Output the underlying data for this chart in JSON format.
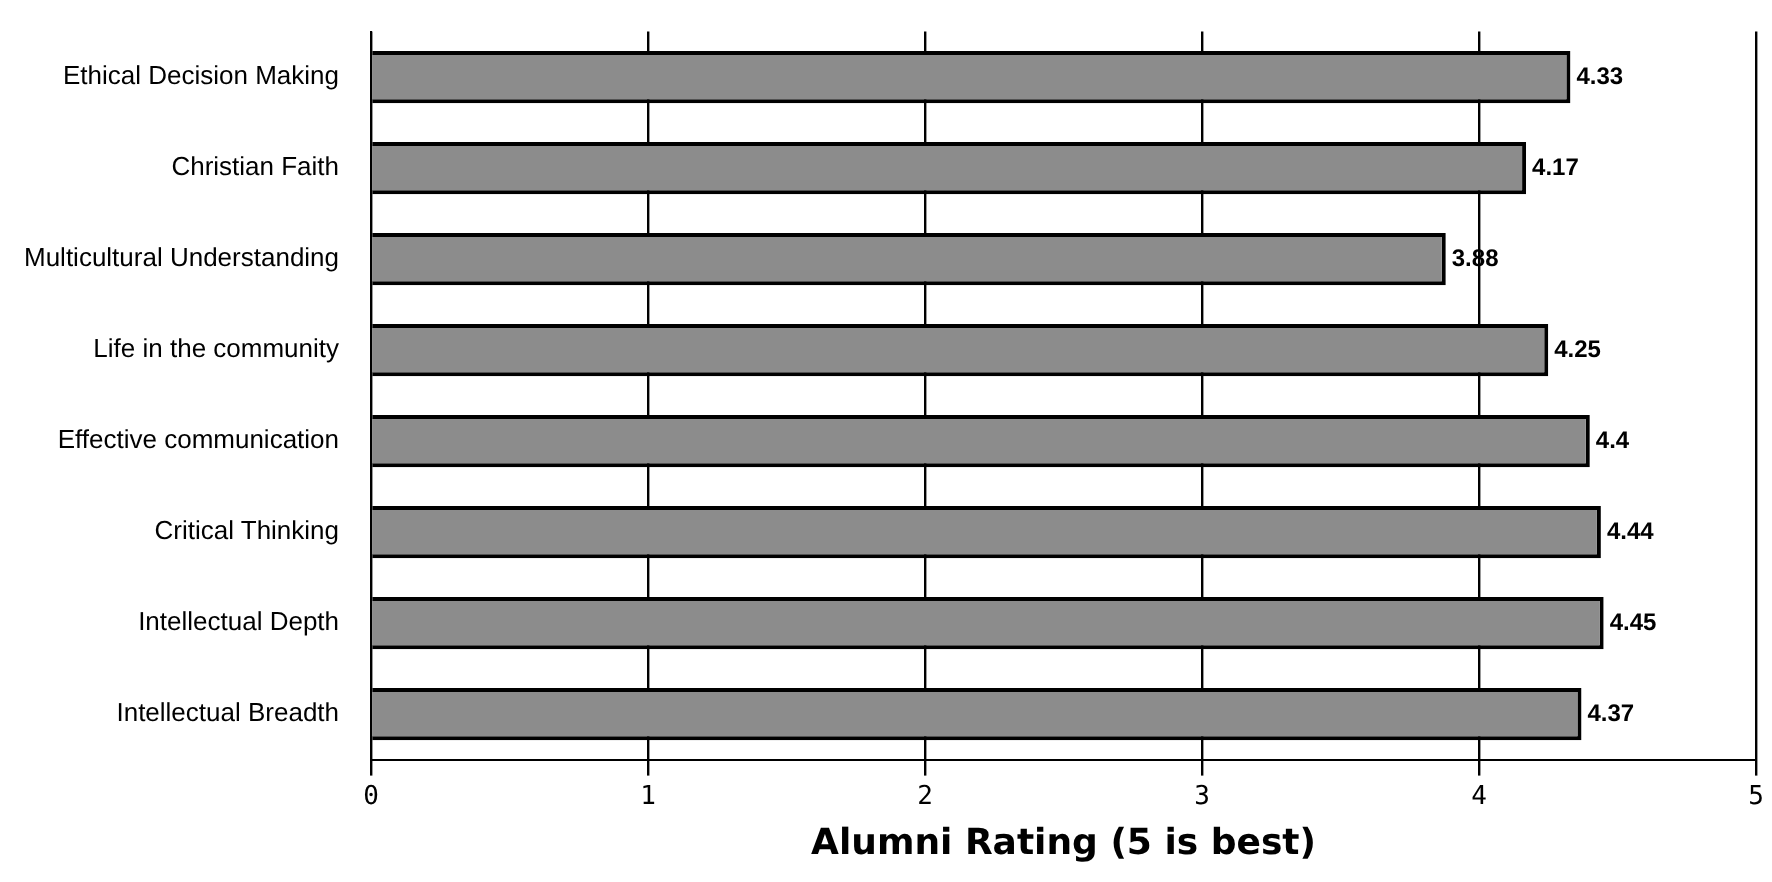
{
  "chart_data": {
    "type": "bar",
    "orientation": "horizontal",
    "xlabel": "Alumni Rating (5 is best)",
    "categories": [
      "Ethical Decision Making",
      "Christian Faith",
      "Multicultural Understanding",
      "Life in the community",
      "Effective communication",
      "Critical Thinking",
      "Intellectual Depth",
      "Intellectual Breadth"
    ],
    "values": [
      4.33,
      4.17,
      3.88,
      4.25,
      4.4,
      4.44,
      4.45,
      4.37
    ],
    "value_labels": [
      "4.33",
      "4.17",
      "3.88",
      "4.25",
      "4.4",
      "4.44",
      "4.45",
      "4.37"
    ],
    "color": "#8c8c8c",
    "xlim": [
      0,
      5
    ],
    "xticks": [
      0,
      1,
      2,
      3,
      4,
      5
    ],
    "grid": "x",
    "legend": false
  }
}
